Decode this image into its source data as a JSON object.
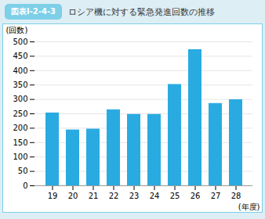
{
  "chart_data": {
    "type": "bar",
    "title": "ロシア機に対する緊急発進回数の推移",
    "subtitle": "図表Ⅰ-2-4-3",
    "ylabel": "(回数)",
    "xlabel": "(年度)",
    "categories": [
      "19",
      "20",
      "21",
      "22",
      "23",
      "24",
      "25",
      "26",
      "27",
      "28"
    ],
    "values": [
      253,
      194,
      197,
      264,
      248,
      248,
      352,
      473,
      286,
      299
    ],
    "color": "#29abe2",
    "ylim": [
      0,
      500
    ],
    "yticks": [
      0,
      50,
      100,
      150,
      200,
      250,
      300,
      350,
      400,
      450,
      500
    ],
    "grid": true
  }
}
